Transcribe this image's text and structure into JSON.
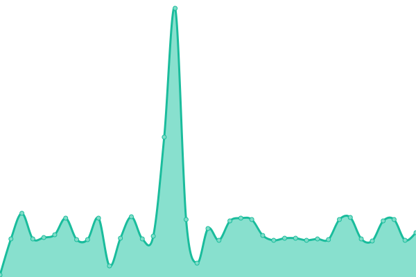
{
  "chart_data": {
    "type": "area",
    "smoothing": "spline",
    "title": "",
    "xlabel": "",
    "ylabel": "",
    "axes_visible": false,
    "grid": false,
    "legend": "none",
    "ylim": [
      0,
      400
    ],
    "x": [
      0,
      1,
      2,
      3,
      4,
      5,
      6,
      7,
      8,
      9,
      10,
      11,
      12,
      13,
      14,
      15,
      16,
      17,
      18,
      19,
      20,
      21,
      22,
      23,
      24,
      25,
      26,
      27,
      28,
      29,
      30,
      31,
      32,
      33,
      34,
      35,
      36,
      37,
      38
    ],
    "series": [
      {
        "values": [
          3,
          55,
          92,
          55,
          57,
          61,
          85,
          54,
          54,
          85,
          16,
          56,
          87,
          55,
          59,
          202,
          388,
          83,
          20,
          70,
          53,
          81,
          85,
          83,
          60,
          53,
          56,
          56,
          53,
          55,
          54,
          83,
          86,
          55,
          52,
          81,
          83,
          53,
          64
        ],
        "line_color": "#1abc9c",
        "fill_color": "#88e0ce",
        "marker_fill": "#7fdcc8"
      }
    ]
  }
}
